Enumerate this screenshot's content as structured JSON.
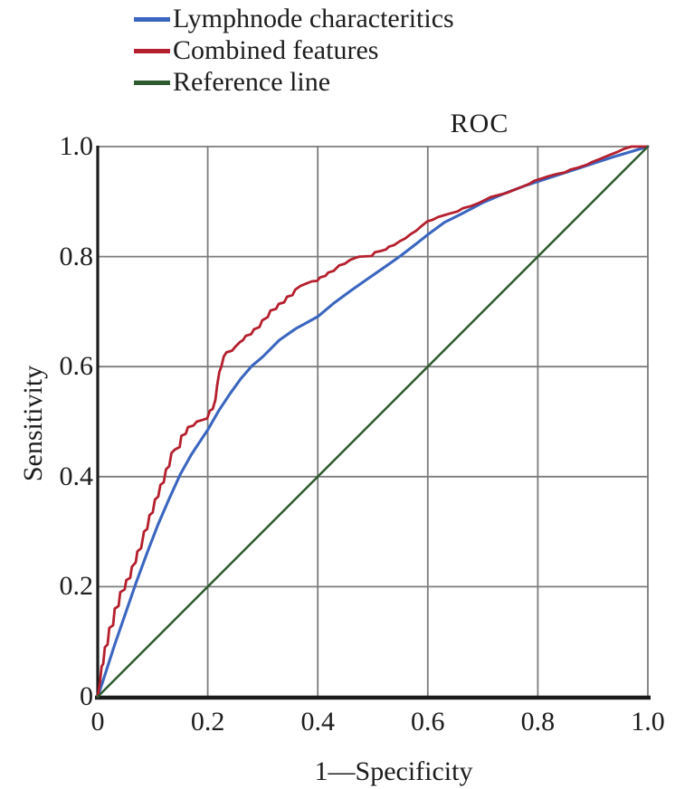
{
  "legend": {
    "items": [
      {
        "label": "Lymphnode characteritics",
        "color": "#3a66c0"
      },
      {
        "label": "Combined features",
        "color": "#b51f2d"
      },
      {
        "label": "Reference line",
        "color": "#2d5a2e"
      }
    ]
  },
  "chart_data": {
    "type": "line",
    "title": "ROC",
    "xlabel": "1—Specificity",
    "ylabel": "Sensitivity",
    "xlim": [
      0,
      1
    ],
    "ylim": [
      0,
      1
    ],
    "grid": true,
    "legend_position": "top-left-above-plot",
    "x_ticks": {
      "values": [
        0,
        0.2,
        0.4,
        0.6,
        0.8,
        1.0
      ],
      "labels": [
        "0",
        "0.2",
        "0.4",
        "0.6",
        "0.8",
        "1.0"
      ]
    },
    "y_ticks": {
      "values": [
        0,
        0.2,
        0.4,
        0.6,
        0.8,
        1.0
      ],
      "labels": [
        "0",
        "0.2",
        "0.4",
        "0.6",
        "0.8",
        "1.0"
      ]
    },
    "grid_color": "#7c7c7c",
    "axis_color": "#1b1b1b",
    "series": [
      {
        "name": "Lymphnode characteritics",
        "color": "#3a66c0",
        "style": "smooth",
        "points": [
          [
            0,
            0
          ],
          [
            0.01,
            0.03
          ],
          [
            0.03,
            0.092
          ],
          [
            0.05,
            0.15
          ],
          [
            0.07,
            0.208
          ],
          [
            0.09,
            0.262
          ],
          [
            0.11,
            0.314
          ],
          [
            0.13,
            0.36
          ],
          [
            0.15,
            0.404
          ],
          [
            0.17,
            0.44
          ],
          [
            0.19,
            0.47
          ],
          [
            0.2,
            0.485
          ],
          [
            0.22,
            0.52
          ],
          [
            0.24,
            0.55
          ],
          [
            0.26,
            0.578
          ],
          [
            0.28,
            0.601
          ],
          [
            0.3,
            0.618
          ],
          [
            0.33,
            0.648
          ],
          [
            0.36,
            0.669
          ],
          [
            0.38,
            0.68
          ],
          [
            0.4,
            0.691
          ],
          [
            0.43,
            0.716
          ],
          [
            0.46,
            0.738
          ],
          [
            0.49,
            0.759
          ],
          [
            0.52,
            0.78
          ],
          [
            0.55,
            0.801
          ],
          [
            0.58,
            0.824
          ],
          [
            0.6,
            0.84
          ],
          [
            0.63,
            0.862
          ],
          [
            0.66,
            0.877
          ],
          [
            0.7,
            0.898
          ],
          [
            0.74,
            0.915
          ],
          [
            0.78,
            0.93
          ],
          [
            0.82,
            0.943
          ],
          [
            0.86,
            0.956
          ],
          [
            0.9,
            0.969
          ],
          [
            0.94,
            0.982
          ],
          [
            0.97,
            0.991
          ],
          [
            1,
            1
          ]
        ]
      },
      {
        "name": "Combined features",
        "color": "#b51f2d",
        "style": "jagged",
        "points": [
          [
            0,
            0
          ],
          [
            0.004,
            0.025
          ],
          [
            0.007,
            0.055
          ],
          [
            0.01,
            0.06
          ],
          [
            0.013,
            0.09
          ],
          [
            0.018,
            0.095
          ],
          [
            0.021,
            0.125
          ],
          [
            0.028,
            0.13
          ],
          [
            0.031,
            0.16
          ],
          [
            0.038,
            0.165
          ],
          [
            0.041,
            0.19
          ],
          [
            0.049,
            0.195
          ],
          [
            0.052,
            0.212
          ],
          [
            0.059,
            0.216
          ],
          [
            0.062,
            0.236
          ],
          [
            0.069,
            0.244
          ],
          [
            0.072,
            0.264
          ],
          [
            0.079,
            0.27
          ],
          [
            0.084,
            0.3
          ],
          [
            0.09,
            0.305
          ],
          [
            0.094,
            0.33
          ],
          [
            0.1,
            0.335
          ],
          [
            0.104,
            0.358
          ],
          [
            0.11,
            0.364
          ],
          [
            0.114,
            0.385
          ],
          [
            0.12,
            0.39
          ],
          [
            0.124,
            0.413
          ],
          [
            0.13,
            0.419
          ],
          [
            0.134,
            0.443
          ],
          [
            0.14,
            0.449
          ],
          [
            0.149,
            0.454
          ],
          [
            0.152,
            0.474
          ],
          [
            0.16,
            0.478
          ],
          [
            0.164,
            0.49
          ],
          [
            0.174,
            0.493
          ],
          [
            0.18,
            0.5
          ],
          [
            0.19,
            0.503
          ],
          [
            0.199,
            0.506
          ],
          [
            0.204,
            0.52
          ],
          [
            0.209,
            0.523
          ],
          [
            0.214,
            0.54
          ],
          [
            0.217,
            0.565
          ],
          [
            0.221,
            0.59
          ],
          [
            0.225,
            0.601
          ],
          [
            0.229,
            0.618
          ],
          [
            0.234,
            0.626
          ],
          [
            0.244,
            0.629
          ],
          [
            0.25,
            0.636
          ],
          [
            0.259,
            0.645
          ],
          [
            0.264,
            0.648
          ],
          [
            0.269,
            0.656
          ],
          [
            0.279,
            0.659
          ],
          [
            0.284,
            0.668
          ],
          [
            0.294,
            0.672
          ],
          [
            0.299,
            0.684
          ],
          [
            0.309,
            0.69
          ],
          [
            0.314,
            0.702
          ],
          [
            0.324,
            0.705
          ],
          [
            0.329,
            0.714
          ],
          [
            0.339,
            0.717
          ],
          [
            0.344,
            0.727
          ],
          [
            0.354,
            0.73
          ],
          [
            0.359,
            0.74
          ],
          [
            0.369,
            0.747
          ],
          [
            0.379,
            0.751
          ],
          [
            0.389,
            0.755
          ],
          [
            0.399,
            0.756
          ],
          [
            0.404,
            0.762
          ],
          [
            0.414,
            0.765
          ],
          [
            0.419,
            0.771
          ],
          [
            0.429,
            0.774
          ],
          [
            0.439,
            0.784
          ],
          [
            0.449,
            0.787
          ],
          [
            0.459,
            0.794
          ],
          [
            0.469,
            0.798
          ],
          [
            0.476,
            0.8
          ],
          [
            0.498,
            0.801
          ],
          [
            0.504,
            0.808
          ],
          [
            0.514,
            0.81
          ],
          [
            0.524,
            0.813
          ],
          [
            0.529,
            0.818
          ],
          [
            0.539,
            0.821
          ],
          [
            0.549,
            0.828
          ],
          [
            0.559,
            0.833
          ],
          [
            0.569,
            0.841
          ],
          [
            0.579,
            0.847
          ],
          [
            0.589,
            0.856
          ],
          [
            0.599,
            0.864
          ],
          [
            0.609,
            0.867
          ],
          [
            0.619,
            0.872
          ],
          [
            0.629,
            0.875
          ],
          [
            0.639,
            0.878
          ],
          [
            0.654,
            0.882
          ],
          [
            0.664,
            0.888
          ],
          [
            0.679,
            0.892
          ],
          [
            0.694,
            0.898
          ],
          [
            0.704,
            0.903
          ],
          [
            0.714,
            0.908
          ],
          [
            0.729,
            0.912
          ],
          [
            0.744,
            0.916
          ],
          [
            0.754,
            0.92
          ],
          [
            0.769,
            0.926
          ],
          [
            0.784,
            0.932
          ],
          [
            0.794,
            0.938
          ],
          [
            0.804,
            0.941
          ],
          [
            0.819,
            0.946
          ],
          [
            0.834,
            0.95
          ],
          [
            0.849,
            0.953
          ],
          [
            0.859,
            0.958
          ],
          [
            0.874,
            0.962
          ],
          [
            0.889,
            0.967
          ],
          [
            0.899,
            0.972
          ],
          [
            0.914,
            0.978
          ],
          [
            0.929,
            0.984
          ],
          [
            0.944,
            0.99
          ],
          [
            0.957,
            0.996
          ],
          [
            0.97,
            1
          ],
          [
            1,
            1
          ]
        ]
      },
      {
        "name": "Reference line",
        "color": "#2d5a2e",
        "style": "straight",
        "points": [
          [
            0,
            0
          ],
          [
            1,
            1
          ]
        ]
      }
    ]
  }
}
